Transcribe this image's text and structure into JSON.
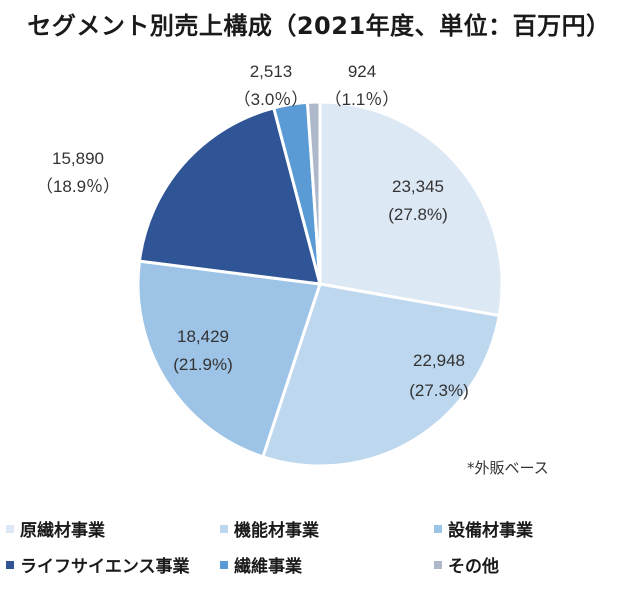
{
  "title": "セグメント別売上構成（2021年度、単位：百万円）",
  "note": "*外販ベース",
  "chart_data": {
    "type": "pie",
    "title": "セグメント別売上構成（2021年度、単位：百万円）",
    "unit": "百万円",
    "start_angle_deg": 0,
    "direction": "clockwise",
    "slices": [
      {
        "name": "原繊材事業",
        "value": 23345,
        "value_label": "23,345",
        "percent_label": "(27.8%)",
        "color": "#DDE8F5"
      },
      {
        "name": "機能材事業",
        "value": 22948,
        "value_label": "22,948",
        "percent_label": "(27.3%)",
        "color": "#BDD7EE"
      },
      {
        "name": "設備材事業",
        "value": 18429,
        "value_label": "18,429",
        "percent_label": "(21.9%)",
        "color": "#9DC3E6"
      },
      {
        "name": "ライフサイエンス事業",
        "value": 15890,
        "value_label": "15,890",
        "percent_label": "（18.9％）",
        "color": "#2F5597"
      },
      {
        "name": "繊維事業",
        "value": 2513,
        "value_label": "2,513",
        "percent_label": "（3.0％）",
        "color": "#5B9BD5"
      },
      {
        "name": "その他",
        "value": 924,
        "value_label": "924",
        "percent_label": "（1.1％）",
        "color": "#ADB9CA"
      }
    ],
    "legend": {
      "position": "bottom",
      "items": [
        "原繊材事業",
        "機能材事業",
        "設備材事業",
        "ライフサイエンス事業",
        "繊維事業",
        "その他"
      ]
    }
  }
}
